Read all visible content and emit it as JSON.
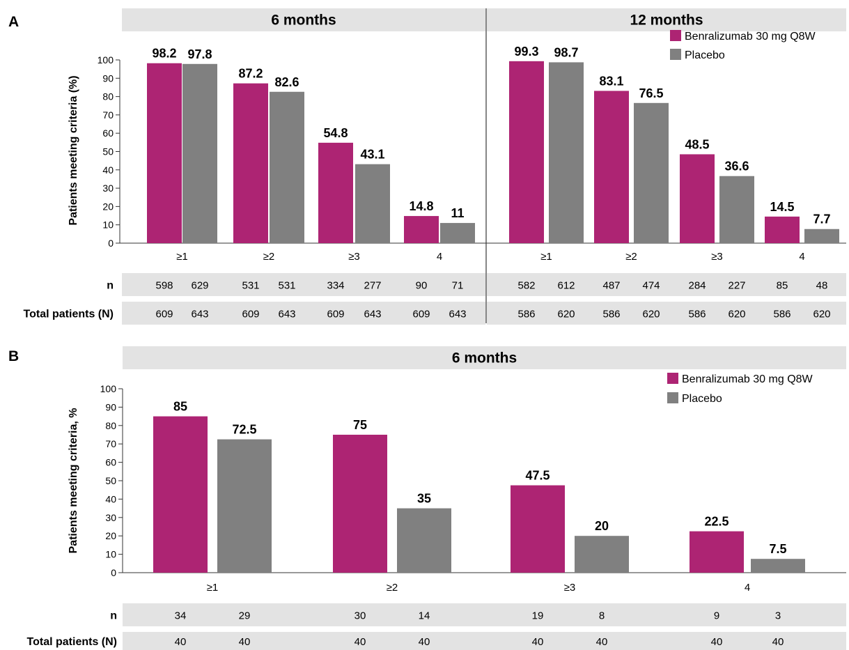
{
  "colors": {
    "benralizumab": "#ad2473",
    "placebo": "#808080"
  },
  "chart_data": [
    {
      "panel": "A",
      "type": "bar",
      "ylabel": "Patients meeting criteria (%)",
      "ylim": [
        0,
        100
      ],
      "yticks": [
        0,
        10,
        20,
        30,
        40,
        50,
        60,
        70,
        80,
        90,
        100
      ],
      "legend": "top-right",
      "legend_entries": [
        "Benralizumab 30 mg Q8W",
        "Placebo"
      ],
      "row_labels": {
        "n": "n",
        "total": "Total patients (N)"
      },
      "groups": [
        {
          "title": "6 months",
          "categories": [
            "≥1",
            "≥2",
            "≥3",
            "4"
          ],
          "series": [
            {
              "name": "Benralizumab 30 mg Q8W",
              "values": [
                98.2,
                87.2,
                54.8,
                14.8
              ],
              "labels": [
                "98.2",
                "87.2",
                "54.8",
                "14.8"
              ],
              "n": [
                "598",
                "531",
                "334",
                "90"
              ],
              "total": [
                "609",
                "609",
                "609",
                "609"
              ]
            },
            {
              "name": "Placebo",
              "values": [
                97.8,
                82.6,
                43.1,
                11
              ],
              "labels": [
                "97.8",
                "82.6",
                "43.1",
                "11"
              ],
              "n": [
                "629",
                "531",
                "277",
                "71"
              ],
              "total": [
                "643",
                "643",
                "643",
                "643"
              ]
            }
          ]
        },
        {
          "title": "12 months",
          "categories": [
            "≥1",
            "≥2",
            "≥3",
            "4"
          ],
          "series": [
            {
              "name": "Benralizumab 30 mg Q8W",
              "values": [
                99.3,
                83.1,
                48.5,
                14.5
              ],
              "labels": [
                "99.3",
                "83.1",
                "48.5",
                "14.5"
              ],
              "n": [
                "582",
                "487",
                "284",
                "85"
              ],
              "total": [
                "586",
                "586",
                "586",
                "586"
              ]
            },
            {
              "name": "Placebo",
              "values": [
                98.7,
                76.5,
                36.6,
                7.7
              ],
              "labels": [
                "98.7",
                "76.5",
                "36.6",
                "7.7"
              ],
              "n": [
                "612",
                "474",
                "227",
                "48"
              ],
              "total": [
                "620",
                "620",
                "620",
                "620"
              ]
            }
          ]
        }
      ]
    },
    {
      "panel": "B",
      "type": "bar",
      "ylabel": "Patients meeting criteria, %",
      "ylim": [
        0,
        100
      ],
      "yticks": [
        0,
        10,
        20,
        30,
        40,
        50,
        60,
        70,
        80,
        90,
        100
      ],
      "legend": "top-right",
      "legend_entries": [
        "Benralizumab 30 mg Q8W",
        "Placebo"
      ],
      "row_labels": {
        "n": "n",
        "total": "Total patients (N)"
      },
      "groups": [
        {
          "title": "6 months",
          "categories": [
            "≥1",
            "≥2",
            "≥3",
            "4"
          ],
          "series": [
            {
              "name": "Benralizumab 30 mg Q8W",
              "values": [
                85,
                75,
                47.5,
                22.5
              ],
              "labels": [
                "85",
                "75",
                "47.5",
                "22.5"
              ],
              "n": [
                "34",
                "30",
                "19",
                "9"
              ],
              "total": [
                "40",
                "40",
                "40",
                "40"
              ]
            },
            {
              "name": "Placebo",
              "values": [
                72.5,
                35,
                20,
                7.5
              ],
              "labels": [
                "72.5",
                "35",
                "20",
                "7.5"
              ],
              "n": [
                "29",
                "14",
                "8",
                "3"
              ],
              "total": [
                "40",
                "40",
                "40",
                "40"
              ]
            }
          ]
        }
      ]
    }
  ]
}
